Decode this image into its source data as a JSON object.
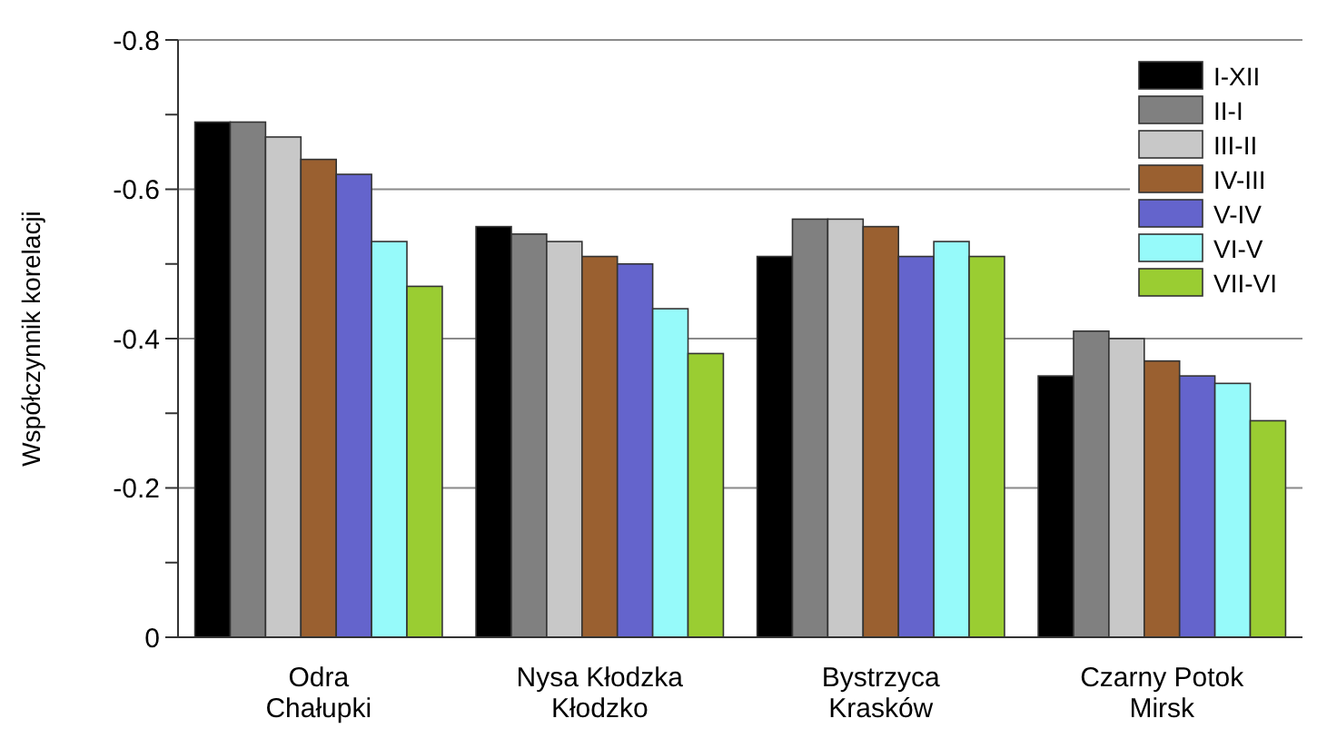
{
  "chart_data": {
    "type": "bar",
    "ylabel": "Współczynnik korelacji",
    "categories": [
      "Odra\nChałupki",
      "Nysa Kłodzka\nKłodzko",
      "Bystrzyca\nKrasków",
      "Czarny Potok\nMirsk"
    ],
    "series": [
      {
        "name": "I-XII",
        "color": "#000000",
        "values": [
          -0.69,
          -0.55,
          -0.51,
          -0.35
        ]
      },
      {
        "name": "II-I",
        "color": "#808080",
        "values": [
          -0.69,
          -0.54,
          -0.56,
          -0.41
        ]
      },
      {
        "name": "III-II",
        "color": "#c8c8c8",
        "values": [
          -0.67,
          -0.53,
          -0.56,
          -0.4
        ]
      },
      {
        "name": "IV-III",
        "color": "#9a6030",
        "values": [
          -0.64,
          -0.51,
          -0.55,
          -0.37
        ]
      },
      {
        "name": "V-IV",
        "color": "#6464cc",
        "values": [
          -0.62,
          -0.5,
          -0.51,
          -0.35
        ]
      },
      {
        "name": "VI-V",
        "color": "#96fafa",
        "values": [
          -0.53,
          -0.44,
          -0.53,
          -0.34
        ]
      },
      {
        "name": "VII-VI",
        "color": "#9acd32",
        "values": [
          -0.47,
          -0.38,
          -0.51,
          -0.29
        ]
      }
    ],
    "ylim": [
      0,
      -0.8
    ],
    "yticks": [
      0,
      {
        "value": -0.1,
        "label": null
      },
      {
        "value": -0.2,
        "label": "-0.2"
      },
      {
        "value": -0.3,
        "label": null
      },
      {
        "value": -0.4,
        "label": "-0.4"
      },
      {
        "value": -0.5,
        "label": null
      },
      {
        "value": -0.6,
        "label": "-0.6"
      },
      {
        "value": -0.7,
        "label": null
      },
      {
        "value": -0.8,
        "label": "-0.8"
      }
    ],
    "grid": "y",
    "legend": "top right"
  }
}
